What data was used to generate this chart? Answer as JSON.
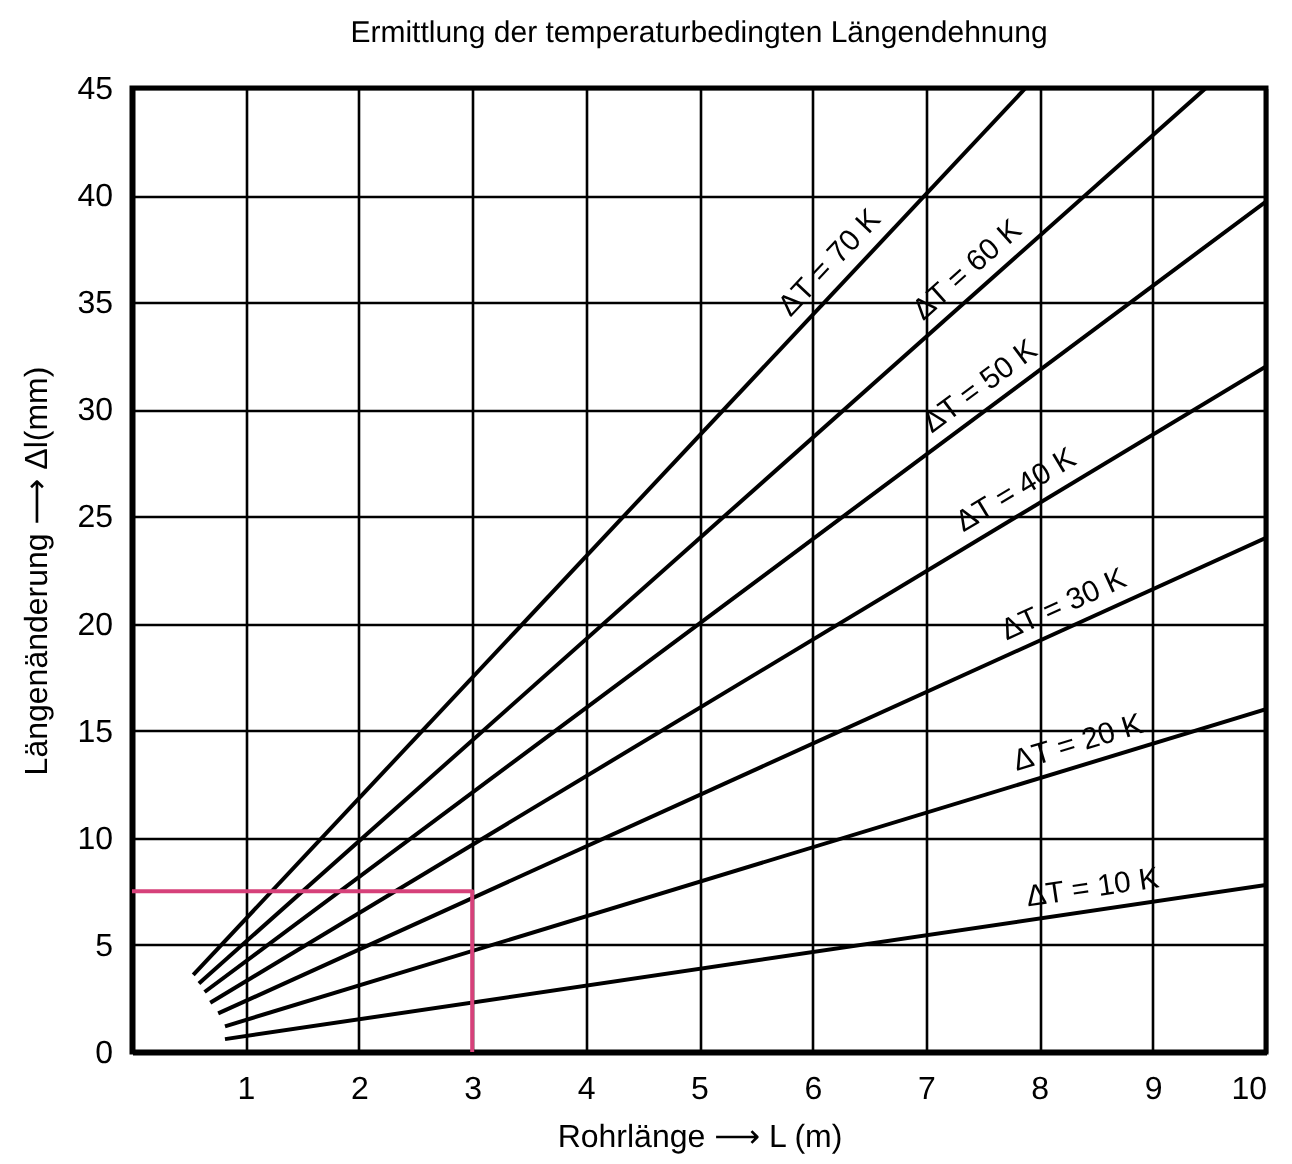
{
  "chart_data": {
    "type": "line",
    "title": "Ermittlung der temperaturbedingten Längendehnung",
    "xlabel": "Rohrlänge ⟶ L (m)",
    "ylabel": "Längenänderung ⟶ Δl(mm)",
    "xlim": [
      0,
      10
    ],
    "xticks": [
      1,
      2,
      3,
      4,
      5,
      6,
      7,
      8,
      9,
      10
    ],
    "ylim": [
      0,
      45
    ],
    "yticks": [
      0,
      5,
      10,
      15,
      20,
      25,
      30,
      35,
      40,
      45
    ],
    "grid": true,
    "line_style": "solid",
    "series": [
      {
        "color": "#000000",
        "x": [
          0.54,
          7.88
        ],
        "values": [
          3.6,
          45
        ]
      },
      {
        "color": "#000000",
        "x": [
          0.59,
          9.47
        ],
        "values": [
          3.2,
          45
        ]
      },
      {
        "color": "#000000",
        "x": [
          0.64,
          10
        ],
        "values": [
          2.8,
          39.7
        ]
      },
      {
        "color": "#000000",
        "x": [
          0.69,
          10
        ],
        "values": [
          2.3,
          32
        ]
      },
      {
        "color": "#000000",
        "x": [
          0.76,
          10
        ],
        "values": [
          1.8,
          24
        ]
      },
      {
        "color": "#000000",
        "x": [
          0.82,
          10
        ],
        "values": [
          1.2,
          16
        ]
      },
      {
        "color": "#000000",
        "x": [
          0.82,
          10
        ],
        "values": [
          0.6,
          7.8
        ]
      },
      {
        "color": "#d6417a",
        "x": [
          3,
          3,
          0
        ],
        "values": [
          0,
          7.5,
          7.5
        ]
      }
    ],
    "annotations": [
      {
        "text": "ΔT = 70 K",
        "x": 6.3,
        "y": 36.1
      },
      {
        "text": "ΔT = 60 K",
        "x": 7.5,
        "y": 35.7
      },
      {
        "text": "ΔT = 50 K",
        "x": 7.6,
        "y": 30.2
      },
      {
        "text": "ΔT = 40 K",
        "x": 7.9,
        "y": 25.3
      },
      {
        "text": "ΔT = 30 K",
        "x": 8.3,
        "y": 19.9
      },
      {
        "text": "ΔT = 20 K",
        "x": 8.4,
        "y": 13.4
      },
      {
        "text": "ΔT = 10 K",
        "x": 8.5,
        "y": 6.6
      }
    ]
  }
}
